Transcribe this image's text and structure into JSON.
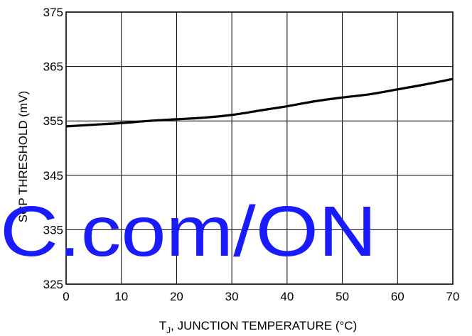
{
  "chart_data": {
    "type": "line",
    "x": [
      0,
      5,
      10,
      15,
      20,
      25,
      30,
      35,
      40,
      45,
      50,
      55,
      60,
      65,
      70
    ],
    "series": [
      {
        "values": [
          354.0,
          354.3,
          354.6,
          355.0,
          355.3,
          355.6,
          356.1,
          356.9,
          357.7,
          358.6,
          359.3,
          359.9,
          360.8,
          361.7,
          362.7
        ]
      }
    ],
    "xlabel_main": "T",
    "xlabel_sub": "J",
    "xlabel_rest": ", JUNCTION TEMPERATURE (°C)",
    "ylabel": "SCP THRESHOLD (mV)",
    "xlim": [
      0,
      70
    ],
    "ylim": [
      325,
      375
    ],
    "xticks": [
      0,
      10,
      20,
      30,
      40,
      50,
      60,
      70
    ],
    "yticks": [
      325,
      335,
      345,
      355,
      365,
      375
    ],
    "grid": true,
    "line_color": "#000000",
    "watermark": "C.com/ON",
    "watermark_color": "#1a1aff"
  }
}
